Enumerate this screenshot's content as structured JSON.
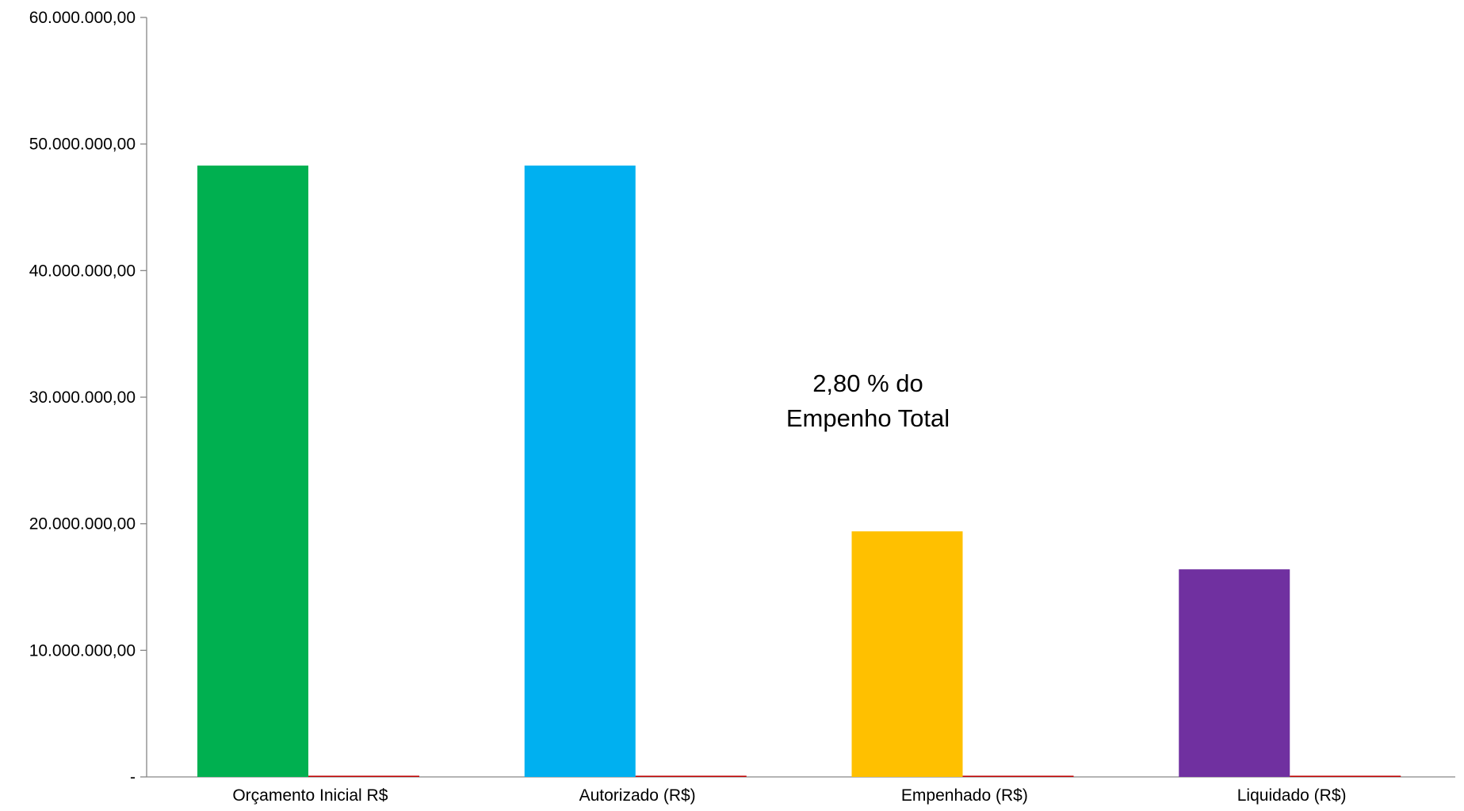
{
  "chart_data": {
    "type": "bar",
    "title": "",
    "xlabel": "",
    "ylabel": "",
    "categories": [
      "Orçamento Inicial R$",
      "Autorizado (R$)",
      "Empenhado (R$)",
      "Liquidado (R$)"
    ],
    "series": [
      {
        "values": [
          48300000,
          48300000,
          19400000,
          16400000
        ],
        "colors": [
          "#00B050",
          "#00B0F0",
          "#FFC000",
          "#7030A0"
        ]
      },
      {
        "values": [
          0,
          0,
          0,
          0
        ],
        "color": "#C00000"
      }
    ],
    "ylim": [
      0,
      60000000
    ],
    "yticks": [
      0,
      10000000,
      20000000,
      30000000,
      40000000,
      50000000,
      60000000
    ],
    "ytick_labels": [
      "-",
      "10.000.000,00",
      "20.000.000,00",
      "30.000.000,00",
      "40.000.000,00",
      "50.000.000,00",
      "60.000.000,00"
    ],
    "grid": false,
    "legend": "none",
    "annotation": {
      "line1": "2,80 % do",
      "line2": "Empenho Total"
    }
  }
}
